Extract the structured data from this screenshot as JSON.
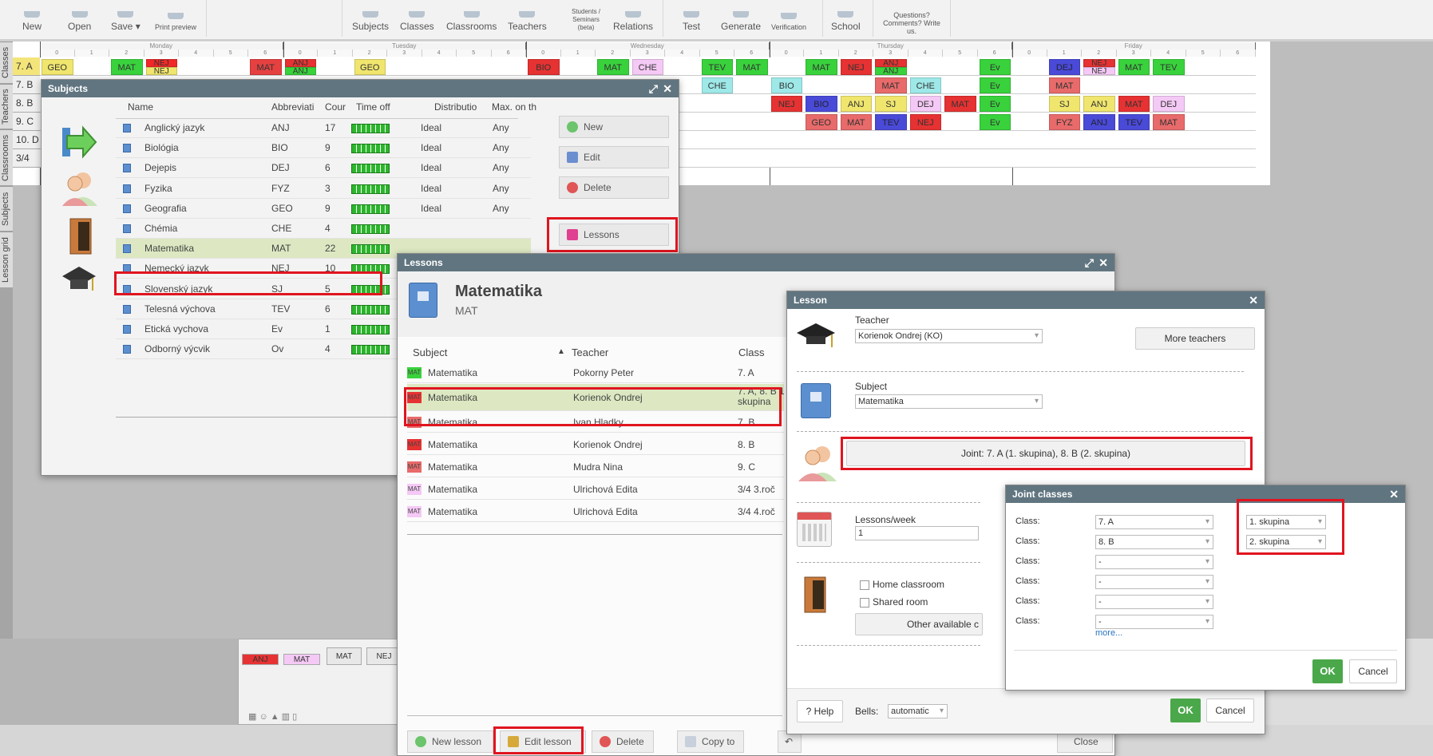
{
  "toolbar": {
    "items": [
      "New",
      "Open",
      "Save",
      "Print preview",
      "Subjects",
      "Classes",
      "Classrooms",
      "Teachers",
      "Students /\nSeminars\n(beta)",
      "Relations",
      "Test",
      "Generate",
      "Verification",
      "School",
      "Questions?\nComments? Write\nus."
    ]
  },
  "sidetabs": [
    "Classes",
    "Teachers",
    "Classrooms",
    "Subjects",
    "Lesson grid"
  ],
  "timetable": {
    "days": [
      "Monday",
      "Tuesday",
      "Wednesday",
      "Thursday",
      "Friday"
    ],
    "periods": [
      "0",
      "1",
      "2",
      "3",
      "4",
      "5",
      "6"
    ],
    "classes": [
      "7. A",
      "7. B",
      "8. B",
      "9. C",
      "10. D",
      "3/4"
    ],
    "cells": [
      {
        "r": 0,
        "d": 0,
        "p": 0,
        "t": "GEO",
        "c": "#f0e66e"
      },
      {
        "r": 0,
        "d": 0,
        "p": 2,
        "t": "MAT",
        "c": "#39d23c"
      },
      {
        "r": 0,
        "d": 0,
        "p": 3,
        "t": "NEJ",
        "c": "#f02828",
        "t2": "NEJ",
        "c2": "#f0e66e"
      },
      {
        "r": 0,
        "d": 0,
        "p": 6,
        "t": "MAT",
        "c": "#e64040"
      },
      {
        "r": 0,
        "d": 1,
        "p": 0,
        "t": "ANJ",
        "c": "#e63232",
        "t2": "ANJ",
        "c2": "#39d23c"
      },
      {
        "r": 0,
        "d": 1,
        "p": 2,
        "t": "GEO",
        "c": "#f0e66e"
      },
      {
        "r": 0,
        "d": 2,
        "p": 0,
        "t": "BIO",
        "c": "#e63232"
      },
      {
        "r": 0,
        "d": 2,
        "p": 2,
        "t": "MAT",
        "c": "#39d23c"
      },
      {
        "r": 0,
        "d": 2,
        "p": 3,
        "t": "CHE",
        "c": "#f5c9f5"
      },
      {
        "r": 0,
        "d": 2,
        "p": 5,
        "t": "TEV",
        "c": "#39d23c"
      },
      {
        "r": 0,
        "d": 2,
        "p": 6,
        "t": "MAT",
        "c": "#39d23c"
      },
      {
        "r": 0,
        "d": 3,
        "p": 1,
        "t": "MAT",
        "c": "#39d23c"
      },
      {
        "r": 0,
        "d": 3,
        "p": 2,
        "t": "NEJ",
        "c": "#e63232"
      },
      {
        "r": 0,
        "d": 3,
        "p": 3,
        "t": "ANJ",
        "c": "#e63232",
        "t2": "ANJ",
        "c2": "#39d23c"
      },
      {
        "r": 0,
        "d": 3,
        "p": 6,
        "t": "Ev",
        "c": "#39d23c"
      },
      {
        "r": 0,
        "d": 4,
        "p": 1,
        "t": "DEJ",
        "c": "#4a4ad8"
      },
      {
        "r": 0,
        "d": 4,
        "p": 2,
        "t": "NEJ",
        "c": "#e63232",
        "t2": "NEJ",
        "c2": "#f5c9f5"
      },
      {
        "r": 0,
        "d": 4,
        "p": 3,
        "t": "MAT",
        "c": "#39d23c"
      },
      {
        "r": 0,
        "d": 4,
        "p": 4,
        "t": "TEV",
        "c": "#39d23c"
      },
      {
        "r": 1,
        "d": 2,
        "p": 5,
        "t": "CHE",
        "c": "#9ee8e8"
      },
      {
        "r": 1,
        "d": 3,
        "p": 0,
        "t": "BIO",
        "c": "#9ee8e8"
      },
      {
        "r": 1,
        "d": 3,
        "p": 3,
        "t": "MAT",
        "c": "#e86a6a"
      },
      {
        "r": 1,
        "d": 3,
        "p": 4,
        "t": "CHE",
        "c": "#9ee8e8"
      },
      {
        "r": 1,
        "d": 3,
        "p": 6,
        "t": "Ev",
        "c": "#39d23c"
      },
      {
        "r": 1,
        "d": 4,
        "p": 1,
        "t": "MAT",
        "c": "#e86a6a"
      },
      {
        "r": 2,
        "d": 3,
        "p": 0,
        "t": "NEJ",
        "c": "#e63232"
      },
      {
        "r": 2,
        "d": 3,
        "p": 1,
        "t": "BIO",
        "c": "#4a4ad8"
      },
      {
        "r": 2,
        "d": 3,
        "p": 2,
        "t": "ANJ",
        "c": "#f0e66e"
      },
      {
        "r": 2,
        "d": 3,
        "p": 3,
        "t": "SJ",
        "c": "#f0e66e"
      },
      {
        "r": 2,
        "d": 3,
        "p": 4,
        "t": "DEJ",
        "c": "#f5c9f5"
      },
      {
        "r": 2,
        "d": 3,
        "p": 5,
        "t": "MAT",
        "c": "#e63232"
      },
      {
        "r": 2,
        "d": 3,
        "p": 6,
        "t": "Ev",
        "c": "#39d23c"
      },
      {
        "r": 2,
        "d": 4,
        "p": 1,
        "t": "SJ",
        "c": "#f0e66e"
      },
      {
        "r": 2,
        "d": 4,
        "p": 2,
        "t": "ANJ",
        "c": "#f0e66e"
      },
      {
        "r": 2,
        "d": 4,
        "p": 3,
        "t": "MAT",
        "c": "#e63232"
      },
      {
        "r": 2,
        "d": 4,
        "p": 4,
        "t": "DEJ",
        "c": "#f5c9f5"
      },
      {
        "r": 3,
        "d": 3,
        "p": 1,
        "t": "GEO",
        "c": "#e86a6a"
      },
      {
        "r": 3,
        "d": 3,
        "p": 2,
        "t": "MAT",
        "c": "#e86a6a"
      },
      {
        "r": 3,
        "d": 3,
        "p": 3,
        "t": "TEV",
        "c": "#4a4ad8"
      },
      {
        "r": 3,
        "d": 3,
        "p": 4,
        "t": "NEJ",
        "c": "#e63232"
      },
      {
        "r": 3,
        "d": 3,
        "p": 6,
        "t": "Ev",
        "c": "#39d23c"
      },
      {
        "r": 3,
        "d": 4,
        "p": 1,
        "t": "FYZ",
        "c": "#e86a6a"
      },
      {
        "r": 3,
        "d": 4,
        "p": 2,
        "t": "ANJ",
        "c": "#4a4ad8"
      },
      {
        "r": 3,
        "d": 4,
        "p": 3,
        "t": "TEV",
        "c": "#4a4ad8"
      },
      {
        "r": 3,
        "d": 4,
        "p": 4,
        "t": "MAT",
        "c": "#e86a6a"
      }
    ]
  },
  "bottom_tray": {
    "chips": [
      {
        "t": "ANJ",
        "c": "#e63232"
      },
      {
        "t": "MAT",
        "c": "#f5c9f5"
      },
      {
        "t": "MAT",
        "c": "#e8e8e8"
      },
      {
        "t": "NEJ",
        "c": "#e8e8e8"
      }
    ]
  },
  "subjects_window": {
    "title": "Subjects",
    "headers": [
      "Name",
      "Abbreviati",
      "Cour",
      "Time off",
      "Distributio",
      "Max. on th"
    ],
    "rows": [
      [
        "Anglický jazyk",
        "ANJ",
        "17",
        "Ideal",
        "Any"
      ],
      [
        "Biológia",
        "BIO",
        "9",
        "Ideal",
        "Any"
      ],
      [
        "Dejepis",
        "DEJ",
        "6",
        "Ideal",
        "Any"
      ],
      [
        "Fyzika",
        "FYZ",
        "3",
        "Ideal",
        "Any"
      ],
      [
        "Geografia",
        "GEO",
        "9",
        "Ideal",
        "Any"
      ],
      [
        "Chémia",
        "CHE",
        "4",
        "",
        ""
      ],
      [
        "Matematika",
        "MAT",
        "22",
        "",
        ""
      ],
      [
        "Nemecký jazyk",
        "NEJ",
        "10",
        "",
        ""
      ],
      [
        "Slovenský jazyk",
        "SJ",
        "5",
        "",
        ""
      ],
      [
        "Telesná výchova",
        "TEV",
        "6",
        "",
        ""
      ],
      [
        "Etická vychova",
        "Ev",
        "1",
        "",
        ""
      ],
      [
        "Odborný výcvik",
        "Ov",
        "4",
        "",
        ""
      ]
    ],
    "buttons": [
      "New",
      "Edit",
      "Delete",
      "Lessons"
    ]
  },
  "lessons_window": {
    "title": "Lessons",
    "subject_name": "Matematika",
    "subject_abbr": "MAT",
    "headers": [
      "Subject",
      "Teacher",
      "Class"
    ],
    "sort_glyph": "▲",
    "rows": [
      {
        "chip": "MAT",
        "chipc": "#39d23c",
        "subject": "Matematika",
        "teacher": "Pokorny Peter",
        "class": "7. A"
      },
      {
        "chip": "MAT",
        "chipc": "#e63232",
        "subject": "Matematika",
        "teacher": "Korienok Ondrej",
        "class": "7. A, 8. B 1",
        "class2": "skupina"
      },
      {
        "chip": "MAT",
        "chipc": "#e86a6a",
        "subject": "Matematika",
        "teacher": "Ivan Hladky",
        "class": "7. B"
      },
      {
        "chip": "MAT",
        "chipc": "#e63232",
        "subject": "Matematika",
        "teacher": "Korienok Ondrej",
        "class": "8. B"
      },
      {
        "chip": "MAT",
        "chipc": "#e86a6a",
        "subject": "Matematika",
        "teacher": "Mudra Nina",
        "class": "9. C"
      },
      {
        "chip": "MAT",
        "chipc": "#f5c9f5",
        "subject": "Matematika",
        "teacher": "Ulrichová Edita",
        "class": "3/4 3.roč"
      },
      {
        "chip": "MAT",
        "chipc": "#f5c9f5",
        "subject": "Matematika",
        "teacher": "Ulrichová Edita",
        "class": "3/4 4.roč"
      }
    ],
    "buttons": [
      "New lesson",
      "Edit lesson",
      "Delete",
      "Copy to",
      "Close"
    ]
  },
  "lesson_window": {
    "title": "Lesson",
    "teacher_label": "Teacher",
    "teacher_value": "Korienok Ondrej (KO)",
    "more_teachers": "More teachers",
    "subject_label": "Subject",
    "subject_value": "Matematika",
    "joint_button": "Joint: 7. A (1. skupina), 8. B (2. skupina)",
    "lessons_week_label": "Lessons/week",
    "lessons_week_value": "1",
    "home_classroom": "Home classroom",
    "shared_room": "Shared room",
    "other_available": "Other available c",
    "help": "Help",
    "bells_label": "Bells:",
    "bells_value": "automatic",
    "ok": "OK",
    "cancel": "Cancel"
  },
  "joint_window": {
    "title": "Joint classes",
    "rows": [
      {
        "label": "Class:",
        "value": "7. A",
        "group": "1. skupina"
      },
      {
        "label": "Class:",
        "value": "8. B",
        "group": "2. skupina"
      },
      {
        "label": "Class:",
        "value": "-"
      },
      {
        "label": "Class:",
        "value": "-"
      },
      {
        "label": "Class:",
        "value": "-"
      },
      {
        "label": "Class:",
        "value": "-"
      }
    ],
    "more": "more...",
    "ok": "OK",
    "cancel": "Cancel"
  }
}
